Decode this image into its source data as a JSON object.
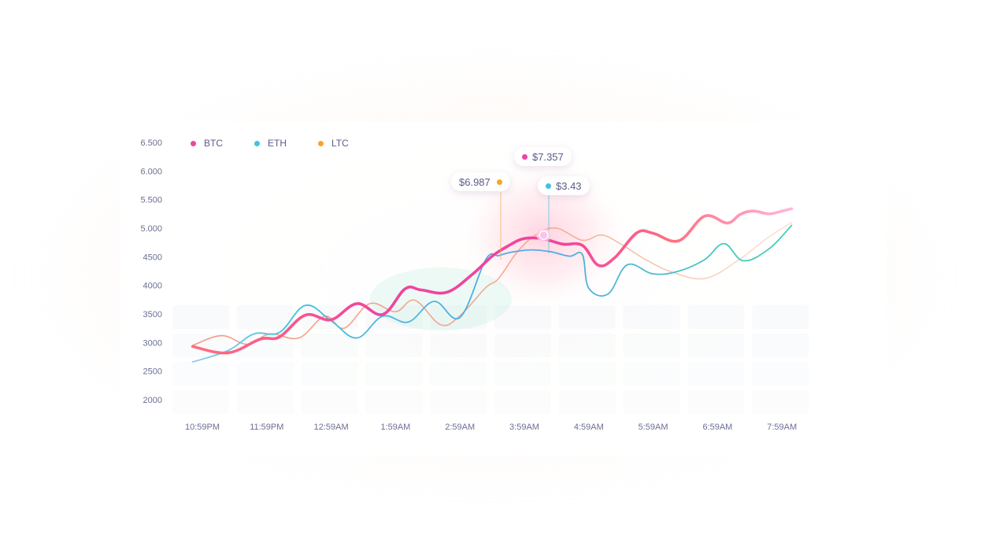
{
  "colors": {
    "btc": "#f0449e",
    "btc_end": "#ff6f7d",
    "eth": "#3fc3df",
    "eth_end": "#3dd3b3",
    "ltc": "#f5a623",
    "ltc_line": "#f4a586",
    "tick_text": "#6c6f93",
    "tooltip_text": "#5a5d86"
  },
  "legend": [
    {
      "label": "BTC",
      "color": "#f0449e"
    },
    {
      "label": "ETH",
      "color": "#3fc3df"
    },
    {
      "label": "LTC",
      "color": "#f5a623"
    }
  ],
  "tooltips": {
    "btc": "$7.357",
    "ltc": "$6.987",
    "eth": "$3.43"
  },
  "chart_data": {
    "type": "line",
    "x_ticks": [
      "10:59PM",
      "11:59PM",
      "12:59AM",
      "1:59AM",
      "2:59AM",
      "3:59AM",
      "4:59AM",
      "5:59AM",
      "6:59AM",
      "7:59AM"
    ],
    "y_ticks": [
      "6.500",
      "6.000",
      "5.500",
      "5.000",
      "4500",
      "4000",
      "3500",
      "3000",
      "2500",
      "2000"
    ],
    "y_tick_values": [
      6500,
      6000,
      5500,
      5000,
      4500,
      4000,
      3500,
      3000,
      2500,
      2000
    ],
    "ylim": [
      2000,
      6500
    ],
    "xlim": [
      -0.18,
      9.18
    ],
    "highlight_x": 5.3,
    "series": [
      {
        "name": "BTC",
        "x": [
          -0.15,
          0.4,
          0.9,
          1.2,
          1.6,
          2.0,
          2.4,
          2.8,
          3.15,
          3.4,
          3.8,
          4.2,
          4.5,
          4.75,
          5.0,
          5.3,
          5.6,
          5.9,
          6.15,
          6.4,
          6.75,
          7.0,
          7.4,
          7.8,
          8.15,
          8.35,
          8.55,
          8.8,
          9.0,
          9.15
        ],
        "y": [
          2930,
          2820,
          3060,
          3100,
          3480,
          3400,
          3680,
          3490,
          3940,
          3920,
          3880,
          4200,
          4510,
          4690,
          4820,
          4810,
          4720,
          4700,
          4350,
          4480,
          4920,
          4910,
          4780,
          5210,
          5090,
          5240,
          5300,
          5250,
          5300,
          5340
        ]
      },
      {
        "name": "ETH",
        "x": [
          -0.15,
          0.4,
          0.8,
          1.2,
          1.6,
          2.0,
          2.4,
          2.8,
          3.2,
          3.6,
          4.0,
          4.4,
          4.6,
          4.8,
          5.1,
          5.4,
          5.7,
          5.9,
          6.0,
          6.3,
          6.6,
          7.0,
          7.4,
          7.8,
          8.1,
          8.4,
          8.8,
          9.15
        ],
        "y": [
          2660,
          2860,
          3150,
          3180,
          3650,
          3380,
          3080,
          3460,
          3360,
          3720,
          3440,
          4450,
          4520,
          4580,
          4620,
          4590,
          4510,
          4540,
          3950,
          3850,
          4360,
          4200,
          4250,
          4450,
          4730,
          4430,
          4640,
          5050
        ]
      },
      {
        "name": "LTC",
        "x": [
          -0.15,
          0.3,
          0.7,
          1.05,
          1.5,
          1.9,
          2.2,
          2.6,
          3.0,
          3.3,
          3.7,
          4.0,
          4.4,
          4.6,
          4.9,
          5.2,
          5.5,
          5.9,
          6.2,
          6.5,
          6.9,
          7.3,
          7.8,
          8.3,
          8.8,
          9.15
        ],
        "y": [
          2950,
          3120,
          2970,
          3150,
          3080,
          3460,
          3250,
          3680,
          3540,
          3740,
          3310,
          3470,
          3960,
          4120,
          4600,
          4900,
          5000,
          4790,
          4880,
          4720,
          4440,
          4230,
          4120,
          4420,
          4850,
          5100
        ]
      }
    ]
  }
}
